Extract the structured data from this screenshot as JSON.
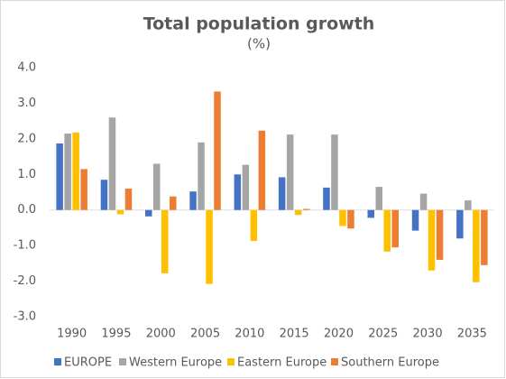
{
  "chart_data": {
    "type": "bar",
    "title": "Total population growth",
    "subtitle": "(%)",
    "categories": [
      "1990",
      "1995",
      "2000",
      "2005",
      "2010",
      "2015",
      "2020",
      "2025",
      "2030",
      "2035"
    ],
    "series": [
      {
        "name": "EUROPE",
        "color": "#4472c4",
        "values": [
          1.87,
          0.85,
          -0.18,
          0.52,
          1.0,
          0.92,
          0.63,
          -0.22,
          -0.58,
          -0.8
        ]
      },
      {
        "name": "Western Europe",
        "color": "#a5a5a5",
        "values": [
          2.15,
          2.6,
          1.3,
          1.9,
          1.27,
          2.12,
          2.12,
          0.65,
          0.46,
          0.27
        ]
      },
      {
        "name": "Eastern Europe",
        "color": "#ffc000",
        "values": [
          2.18,
          -0.12,
          -1.78,
          -2.08,
          -0.87,
          -0.14,
          -0.45,
          -1.17,
          -1.7,
          -2.03
        ]
      },
      {
        "name": "Southern Europe",
        "color": "#ed7d31",
        "values": [
          1.15,
          0.6,
          0.38,
          3.33,
          2.23,
          0.03,
          -0.52,
          -1.05,
          -1.4,
          -1.55
        ]
      }
    ],
    "ylim": [
      -3,
      4
    ],
    "yticks": [
      {
        "value": -3,
        "label": "-3.0"
      },
      {
        "value": -2,
        "label": "-2.0"
      },
      {
        "value": -1,
        "label": "-1.0"
      },
      {
        "value": 0,
        "label": "0.0"
      },
      {
        "value": 1,
        "label": "1.0"
      },
      {
        "value": 2,
        "label": "2.0"
      },
      {
        "value": 3,
        "label": "3.0"
      },
      {
        "value": 4,
        "label": "4.0"
      }
    ],
    "grid": false,
    "legend": "bottom"
  }
}
